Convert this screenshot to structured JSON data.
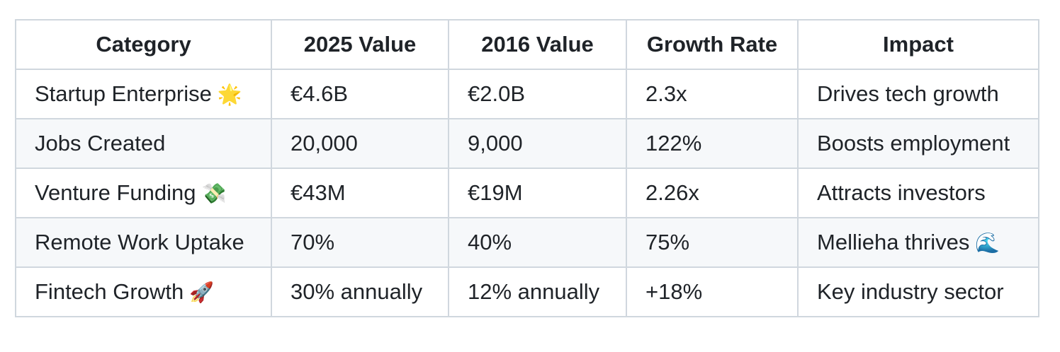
{
  "table": {
    "headers": [
      "Category",
      "2025 Value",
      "2016 Value",
      "Growth Rate",
      "Impact"
    ],
    "rows": [
      {
        "category": "Startup Enterprise",
        "category_emoji": "🌟",
        "value_2025": "€4.6B",
        "value_2016": "€2.0B",
        "growth_rate": "2.3x",
        "impact": "Drives tech growth",
        "impact_emoji": ""
      },
      {
        "category": "Jobs Created",
        "category_emoji": "",
        "value_2025": "20,000",
        "value_2016": "9,000",
        "growth_rate": "122%",
        "impact": "Boosts employment",
        "impact_emoji": ""
      },
      {
        "category": "Venture Funding",
        "category_emoji": "💸",
        "value_2025": "€43M",
        "value_2016": "€19M",
        "growth_rate": "2.26x",
        "impact": "Attracts investors",
        "impact_emoji": ""
      },
      {
        "category": "Remote Work Uptake",
        "category_emoji": "",
        "value_2025": "70%",
        "value_2016": "40%",
        "growth_rate": "75%",
        "impact": "Mellieha thrives",
        "impact_emoji": "🌊"
      },
      {
        "category": "Fintech Growth",
        "category_emoji": "🚀",
        "value_2025": "30% annually",
        "value_2016": "12% annually",
        "growth_rate": "+18%",
        "impact": "Key industry sector",
        "impact_emoji": ""
      }
    ]
  },
  "colors": {
    "border": "#d0d7de",
    "stripe": "#f6f8fa",
    "text": "#1f2328"
  }
}
